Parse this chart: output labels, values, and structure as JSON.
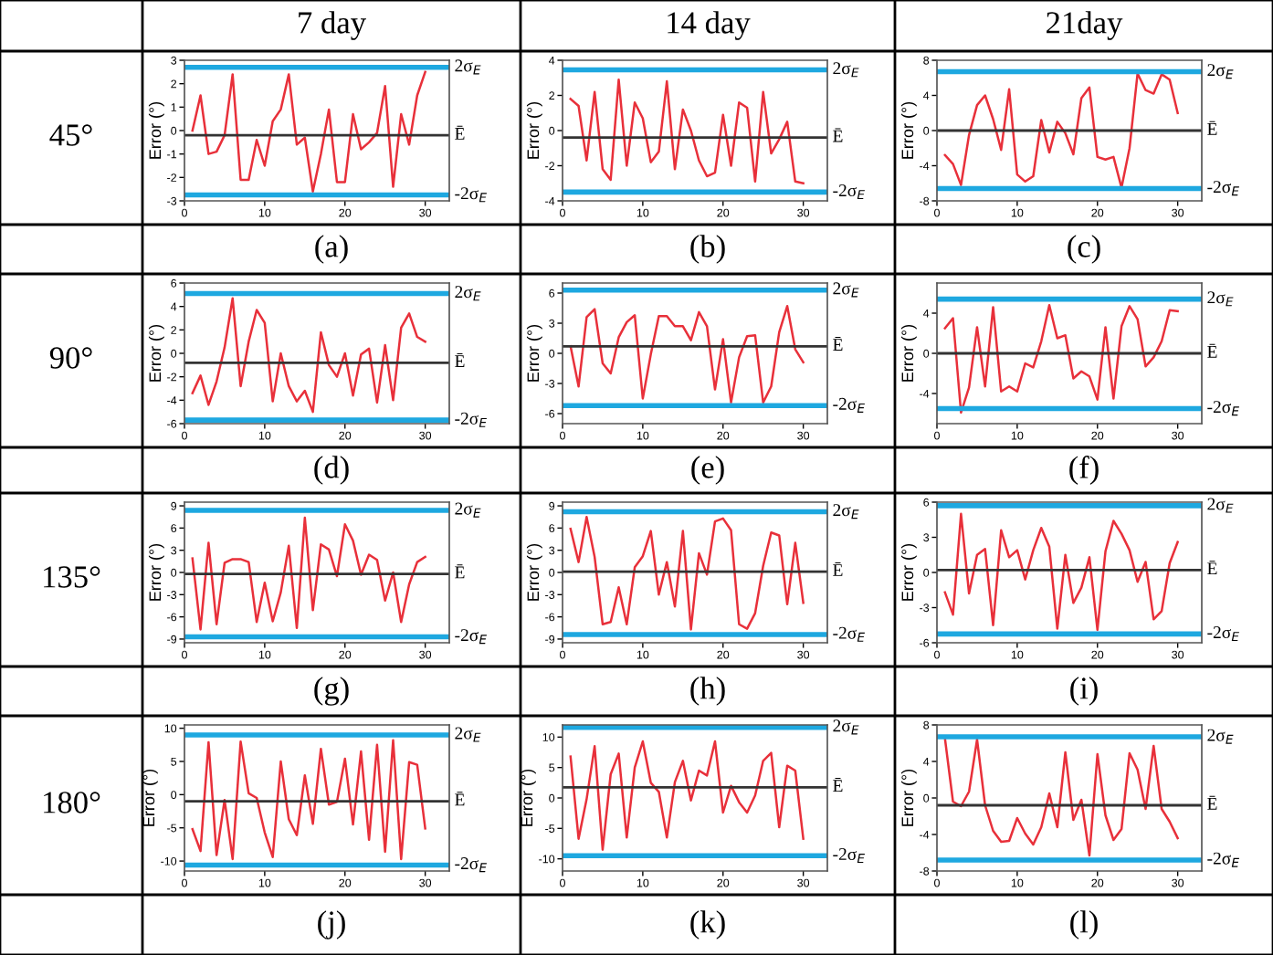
{
  "chart_data": [
    {
      "type": "line",
      "ylabel": "Error (°)",
      "title": "7 day",
      "subtitle": "45°",
      "annotations": [
        "(a)"
      ],
      "x": [
        1,
        2,
        3,
        4,
        5,
        6,
        7,
        8,
        9,
        10,
        11,
        12,
        13,
        14,
        15,
        16,
        17,
        18,
        19,
        20,
        21,
        22,
        23,
        24,
        25,
        26,
        27,
        28,
        29,
        30
      ],
      "xlim": [
        0,
        33
      ],
      "xticks": [
        0,
        10,
        20,
        30
      ],
      "ylim": [
        -3,
        3
      ],
      "yticks": [
        -3,
        -2,
        -1,
        0,
        1,
        2,
        3
      ],
      "series": [
        {
          "color": "#e8303a",
          "values": [
            0,
            1.5,
            -1.0,
            -0.9,
            -0.2,
            2.4,
            -2.1,
            -2.1,
            -0.4,
            -1.5,
            0.4,
            0.9,
            2.4,
            -0.6,
            -0.3,
            -2.6,
            -1.0,
            0.9,
            -2.2,
            -2.2,
            0.7,
            -0.8,
            -0.5,
            -0.1,
            1.9,
            -2.4,
            0.7,
            -0.6,
            1.5,
            2.5
          ]
        }
      ],
      "ref_lines": [
        {
          "axis": "y",
          "value": 2.7,
          "label": "2σ$_{E}$",
          "color": "#1ea8e0"
        },
        {
          "axis": "y",
          "value": -0.2,
          "label": "Ē",
          "color": "#333333"
        },
        {
          "axis": "y",
          "value": -2.75,
          "label": "-2σ$_{E}$",
          "color": "#1ea8e0"
        }
      ]
    },
    {
      "type": "line",
      "ylabel": "Error (°)",
      "title": "14 day",
      "annotations": [
        "(b)"
      ],
      "x": [
        1,
        2,
        3,
        4,
        5,
        6,
        7,
        8,
        9,
        10,
        11,
        12,
        13,
        14,
        15,
        16,
        17,
        18,
        19,
        20,
        21,
        22,
        23,
        24,
        25,
        26,
        27,
        28,
        29,
        30
      ],
      "xlim": [
        0,
        33
      ],
      "xticks": [
        0,
        10,
        20,
        30
      ],
      "ylim": [
        -4,
        4
      ],
      "yticks": [
        -4,
        -2,
        0,
        2,
        4
      ],
      "series": [
        {
          "color": "#e8303a",
          "values": [
            1.8,
            1.4,
            -1.7,
            2.2,
            -2.2,
            -2.8,
            2.9,
            -2.0,
            1.6,
            0.7,
            -1.8,
            -1.2,
            2.8,
            -2.2,
            1.2,
            0.0,
            -1.7,
            -2.6,
            -2.4,
            0.9,
            -2.0,
            1.6,
            1.3,
            -2.9,
            2.2,
            -1.3,
            -0.5,
            0.5,
            -2.9,
            -3.0
          ]
        }
      ],
      "ref_lines": [
        {
          "axis": "y",
          "value": 3.45,
          "label": "2σ$_{E}$",
          "color": "#1ea8e0"
        },
        {
          "axis": "y",
          "value": -0.4,
          "label": "Ē",
          "color": "#333333"
        },
        {
          "axis": "y",
          "value": -3.5,
          "label": "-2σ$_{E}$",
          "color": "#1ea8e0"
        }
      ]
    },
    {
      "type": "line",
      "ylabel": "Error (°)",
      "title": "21day",
      "annotations": [
        "(c)"
      ],
      "x": [
        1,
        2,
        3,
        4,
        5,
        6,
        7,
        8,
        9,
        10,
        11,
        12,
        13,
        14,
        15,
        16,
        17,
        18,
        19,
        20,
        21,
        22,
        23,
        24,
        25,
        26,
        27,
        28,
        29,
        30
      ],
      "xlim": [
        0,
        33
      ],
      "xticks": [
        0,
        10,
        20,
        30
      ],
      "ylim": [
        -8,
        8
      ],
      "yticks": [
        -8,
        -4,
        0,
        4,
        8
      ],
      "series": [
        {
          "color": "#e8303a",
          "values": [
            -2.8,
            -3.8,
            -6.2,
            -0.5,
            2.9,
            4.0,
            1.3,
            -2.2,
            4.7,
            -5.0,
            -5.8,
            -5.2,
            1.2,
            -2.5,
            1.0,
            -0.3,
            -2.7,
            3.7,
            4.9,
            -3.0,
            -3.3,
            -3.0,
            -6.5,
            -2.0,
            6.5,
            4.6,
            4.2,
            6.4,
            5.8,
            2.0
          ]
        }
      ],
      "ref_lines": [
        {
          "axis": "y",
          "value": 6.7,
          "label": "2σ$_{E}$",
          "color": "#1ea8e0"
        },
        {
          "axis": "y",
          "value": 0,
          "label": "Ē",
          "color": "#333333"
        },
        {
          "axis": "y",
          "value": -6.6,
          "label": "-2σ$_{E}$",
          "color": "#1ea8e0"
        }
      ]
    },
    {
      "type": "line",
      "ylabel": "Error (°)",
      "subtitle": "90°",
      "annotations": [
        "(d)"
      ],
      "x": [
        1,
        2,
        3,
        4,
        5,
        6,
        7,
        8,
        9,
        10,
        11,
        12,
        13,
        14,
        15,
        16,
        17,
        18,
        19,
        20,
        21,
        22,
        23,
        24,
        25,
        26,
        27,
        28,
        29,
        30
      ],
      "xlim": [
        0,
        33
      ],
      "xticks": [
        0,
        10,
        20,
        30
      ],
      "ylim": [
        -6,
        6
      ],
      "yticks": [
        -6,
        -4,
        -2,
        0,
        2,
        4,
        6
      ],
      "series": [
        {
          "color": "#e8303a",
          "values": [
            -3.4,
            -1.9,
            -4.4,
            -2.4,
            0.5,
            4.7,
            -2.8,
            1.0,
            3.7,
            2.6,
            -4.1,
            0.0,
            -2.8,
            -4.1,
            -3.2,
            -5.0,
            1.8,
            -1.0,
            -2.0,
            0.0,
            -3.6,
            -0.1,
            0.4,
            -4.2,
            0.7,
            -4.0,
            2.2,
            3.4,
            1.4,
            1.0
          ]
        }
      ],
      "ref_lines": [
        {
          "axis": "y",
          "value": 5.1,
          "label": "2σ$_{E}$",
          "color": "#1ea8e0"
        },
        {
          "axis": "y",
          "value": -0.8,
          "label": "Ē",
          "color": "#333333"
        },
        {
          "axis": "y",
          "value": -5.7,
          "label": "-2σ$_{E}$",
          "color": "#1ea8e0"
        }
      ]
    },
    {
      "type": "line",
      "ylabel": "Error (°)",
      "annotations": [
        "(e)"
      ],
      "x": [
        1,
        2,
        3,
        4,
        5,
        6,
        7,
        8,
        9,
        10,
        11,
        12,
        13,
        14,
        15,
        16,
        17,
        18,
        19,
        20,
        21,
        22,
        23,
        24,
        25,
        26,
        27,
        28,
        29,
        30
      ],
      "xlim": [
        0,
        33
      ],
      "xticks": [
        0,
        10,
        20,
        30
      ],
      "ylim": [
        -7,
        7
      ],
      "yticks": [
        -6,
        -3,
        0,
        3,
        6
      ],
      "series": [
        {
          "color": "#e8303a",
          "values": [
            0.7,
            -3.3,
            3.6,
            4.4,
            -1.0,
            -2.0,
            1.6,
            3.1,
            3.8,
            -4.5,
            -0.1,
            3.7,
            3.7,
            2.7,
            2.7,
            1.3,
            4.1,
            2.7,
            -3.6,
            1.4,
            -4.9,
            -0.4,
            1.7,
            1.8,
            -4.9,
            -3.3,
            2.1,
            4.7,
            0.4,
            -0.9
          ]
        }
      ],
      "ref_lines": [
        {
          "axis": "y",
          "value": 6.3,
          "label": "2σ$_{E}$",
          "color": "#1ea8e0"
        },
        {
          "axis": "y",
          "value": 0.7,
          "label": "Ē",
          "color": "#333333"
        },
        {
          "axis": "y",
          "value": -5.2,
          "label": "-2σ$_{E}$",
          "color": "#1ea8e0"
        }
      ]
    },
    {
      "type": "line",
      "ylabel": "Error (°)",
      "annotations": [
        "(f)"
      ],
      "x": [
        1,
        2,
        3,
        4,
        5,
        6,
        7,
        8,
        9,
        10,
        11,
        12,
        13,
        14,
        15,
        16,
        17,
        18,
        19,
        20,
        21,
        22,
        23,
        24,
        25,
        26,
        27,
        28,
        29,
        30
      ],
      "xlim": [
        0,
        33
      ],
      "xticks": [
        0,
        10,
        20,
        30
      ],
      "ylim": [
        -7,
        7
      ],
      "yticks": [
        -4,
        0,
        4
      ],
      "series": [
        {
          "color": "#e8303a",
          "values": [
            2.5,
            3.5,
            -5.9,
            -3.4,
            2.6,
            -3.3,
            4.6,
            -3.8,
            -3.3,
            -3.8,
            -1.0,
            -1.4,
            1.2,
            4.8,
            1.5,
            1.8,
            -2.5,
            -1.8,
            -2.3,
            -4.6,
            2.6,
            -4.5,
            2.7,
            4.7,
            3.4,
            -1.3,
            -0.4,
            1.2,
            4.3,
            4.2
          ]
        }
      ],
      "ref_lines": [
        {
          "axis": "y",
          "value": 5.4,
          "label": "2σ$_{E}$",
          "color": "#1ea8e0"
        },
        {
          "axis": "y",
          "value": 0,
          "label": "Ē",
          "color": "#333333"
        },
        {
          "axis": "y",
          "value": -5.5,
          "label": "-2σ$_{E}$",
          "color": "#1ea8e0"
        }
      ]
    },
    {
      "type": "line",
      "ylabel": "Error (°)",
      "subtitle": "135°",
      "annotations": [
        "(g)"
      ],
      "x": [
        1,
        2,
        3,
        4,
        5,
        6,
        7,
        8,
        9,
        10,
        11,
        12,
        13,
        14,
        15,
        16,
        17,
        18,
        19,
        20,
        21,
        22,
        23,
        24,
        25,
        26,
        27,
        28,
        29,
        30
      ],
      "xlim": [
        0,
        33
      ],
      "xticks": [
        0,
        10,
        20,
        30
      ],
      "ylim": [
        -9.5,
        9.5
      ],
      "yticks": [
        -9,
        -6,
        -3,
        0,
        3,
        6,
        9
      ],
      "series": [
        {
          "color": "#e8303a",
          "values": [
            1.9,
            -7.7,
            4.0,
            -7.0,
            1.3,
            1.8,
            1.8,
            1.4,
            -6.7,
            -1.4,
            -6.6,
            -2.7,
            3.6,
            -7.5,
            7.4,
            -5.1,
            3.8,
            3.1,
            -0.5,
            6.5,
            4.3,
            -0.3,
            2.4,
            1.7,
            -3.8,
            0.0,
            -6.7,
            -1.6,
            1.4,
            2.1
          ]
        }
      ],
      "ref_lines": [
        {
          "axis": "y",
          "value": 8.4,
          "label": "2σ$_{E}$",
          "color": "#1ea8e0"
        },
        {
          "axis": "y",
          "value": -0.2,
          "label": "Ē",
          "color": "#333333"
        },
        {
          "axis": "y",
          "value": -8.7,
          "label": "-2σ$_{E}$",
          "color": "#1ea8e0"
        }
      ]
    },
    {
      "type": "line",
      "ylabel": "Error (°)",
      "annotations": [
        "(h)"
      ],
      "x": [
        1,
        2,
        3,
        4,
        5,
        6,
        7,
        8,
        9,
        10,
        11,
        12,
        13,
        14,
        15,
        16,
        17,
        18,
        19,
        20,
        21,
        22,
        23,
        24,
        25,
        26,
        27,
        28,
        29,
        30
      ],
      "xlim": [
        0,
        33
      ],
      "xticks": [
        0,
        10,
        20,
        30
      ],
      "ylim": [
        -9.5,
        9.5
      ],
      "yticks": [
        -9,
        -6,
        -3,
        0,
        3,
        6,
        9
      ],
      "series": [
        {
          "color": "#e8303a",
          "values": [
            5.9,
            1.4,
            7.5,
            2.1,
            -7.0,
            -6.7,
            -2.0,
            -7.0,
            0.7,
            2.2,
            5.6,
            -3.0,
            1.4,
            -4.6,
            5.6,
            -7.7,
            2.6,
            -0.3,
            6.9,
            7.3,
            5.7,
            -7.0,
            -7.6,
            -5.5,
            0.9,
            5.4,
            5.0,
            -4.3,
            4.0,
            -4.1
          ]
        }
      ],
      "ref_lines": [
        {
          "axis": "y",
          "value": 8.2,
          "label": "2σ$_{E}$",
          "color": "#1ea8e0"
        },
        {
          "axis": "y",
          "value": 0.1,
          "label": "Ē",
          "color": "#333333"
        },
        {
          "axis": "y",
          "value": -8.4,
          "label": "-2σ$_{E}$",
          "color": "#1ea8e0"
        }
      ]
    },
    {
      "type": "line",
      "ylabel": "Error (°)",
      "annotations": [
        "(i)"
      ],
      "x": [
        1,
        2,
        3,
        4,
        5,
        6,
        7,
        8,
        9,
        10,
        11,
        12,
        13,
        14,
        15,
        16,
        17,
        18,
        19,
        20,
        21,
        22,
        23,
        24,
        25,
        26,
        27,
        28,
        29,
        30
      ],
      "xlim": [
        0,
        33
      ],
      "xticks": [
        0,
        10,
        20,
        30
      ],
      "ylim": [
        -6,
        6
      ],
      "yticks": [
        -6,
        -3,
        0,
        3,
        6
      ],
      "series": [
        {
          "color": "#e8303a",
          "values": [
            -1.7,
            -3.6,
            5.0,
            -1.8,
            1.5,
            2.0,
            -4.5,
            3.6,
            1.3,
            1.9,
            -0.6,
            1.9,
            3.8,
            2.2,
            -4.8,
            1.5,
            -2.6,
            -1.3,
            1.3,
            -4.9,
            1.8,
            4.4,
            3.3,
            1.9,
            -0.8,
            0.9,
            -4.0,
            -3.3,
            0.8,
            2.6
          ]
        }
      ],
      "ref_lines": [
        {
          "axis": "y",
          "value": 5.7,
          "label": "2σ$_{E}$",
          "color": "#1ea8e0"
        },
        {
          "axis": "y",
          "value": 0.2,
          "label": "Ē",
          "color": "#333333"
        },
        {
          "axis": "y",
          "value": -5.25,
          "label": "-2σ$_{E}$",
          "color": "#1ea8e0"
        }
      ]
    },
    {
      "type": "line",
      "ylabel": "Error (°)",
      "subtitle": "180°",
      "annotations": [
        "(j)"
      ],
      "x": [
        1,
        2,
        3,
        4,
        5,
        6,
        7,
        8,
        9,
        10,
        11,
        12,
        13,
        14,
        15,
        16,
        17,
        18,
        19,
        20,
        21,
        22,
        23,
        24,
        25,
        26,
        27,
        28,
        29,
        30
      ],
      "xlim": [
        0,
        33
      ],
      "xticks": [
        0,
        10,
        20,
        30
      ],
      "ylim": [
        -11.5,
        10.5
      ],
      "yticks": [
        -10,
        -5,
        0,
        5,
        10
      ],
      "series": [
        {
          "color": "#e8303a",
          "values": [
            -5.2,
            -8.5,
            7.9,
            -9.1,
            -0.8,
            -9.7,
            8.0,
            0.2,
            -0.5,
            -5.7,
            -9.4,
            5.0,
            -3.7,
            -6.1,
            2.9,
            -4.4,
            6.9,
            -1.5,
            -1.1,
            5.4,
            -4.5,
            6.5,
            -6.8,
            7.5,
            -8.6,
            8.2,
            -9.7,
            4.9,
            4.5,
            -5.1
          ]
        }
      ],
      "ref_lines": [
        {
          "axis": "y",
          "value": 9.0,
          "label": "2σ$_{E}$",
          "color": "#1ea8e0"
        },
        {
          "axis": "y",
          "value": -1.0,
          "label": "Ē",
          "color": "#333333"
        },
        {
          "axis": "y",
          "value": -10.6,
          "label": "-2σ$_{E}$",
          "color": "#1ea8e0"
        }
      ]
    },
    {
      "type": "line",
      "ylabel": "Error (°)",
      "annotations": [
        "(k)"
      ],
      "x": [
        1,
        2,
        3,
        4,
        5,
        6,
        7,
        8,
        9,
        10,
        11,
        12,
        13,
        14,
        15,
        16,
        17,
        18,
        19,
        20,
        21,
        22,
        23,
        24,
        25,
        26,
        27,
        28,
        29,
        30
      ],
      "xlim": [
        0,
        33
      ],
      "xticks": [
        0,
        10,
        20,
        30
      ],
      "ylim": [
        -12,
        12
      ],
      "yticks": [
        -10,
        -5,
        0,
        5,
        10
      ],
      "series": [
        {
          "color": "#e8303a",
          "values": [
            6.8,
            -6.7,
            -0.2,
            8.5,
            -8.5,
            3.9,
            7.3,
            -6.5,
            5.0,
            9.3,
            2.5,
            1.0,
            -6.5,
            2.6,
            6.1,
            -0.4,
            4.5,
            3.7,
            9.3,
            -2.4,
            2.0,
            -0.7,
            -2.4,
            0.4,
            6.1,
            7.4,
            -4.8,
            5.3,
            4.5,
            -6.7
          ]
        }
      ],
      "ref_lines": [
        {
          "axis": "y",
          "value": 11.6,
          "label": "2σ$_{E}$",
          "color": "#1ea8e0"
        },
        {
          "axis": "y",
          "value": 1.75,
          "label": "Ē",
          "color": "#333333"
        },
        {
          "axis": "y",
          "value": -9.5,
          "label": "-2σ$_{E}$",
          "color": "#1ea8e0"
        }
      ]
    },
    {
      "type": "line",
      "ylabel": "Error (°)",
      "annotations": [
        "(l)"
      ],
      "x": [
        1,
        2,
        3,
        4,
        5,
        6,
        7,
        8,
        9,
        10,
        11,
        12,
        13,
        14,
        15,
        16,
        17,
        18,
        19,
        20,
        21,
        22,
        23,
        24,
        25,
        26,
        27,
        28,
        29,
        30
      ],
      "xlim": [
        0,
        33
      ],
      "xticks": [
        0,
        10,
        20,
        30
      ],
      "ylim": [
        -8,
        8
      ],
      "yticks": [
        -8,
        -4,
        0,
        4,
        8
      ],
      "series": [
        {
          "color": "#e8303a",
          "values": [
            6.5,
            -0.4,
            -0.9,
            0.7,
            6.4,
            -0.8,
            -3.6,
            -4.8,
            -4.7,
            -2.2,
            -3.9,
            -5.1,
            -3.2,
            0.5,
            -3.2,
            5.0,
            -2.4,
            -0.2,
            -6.3,
            4.8,
            -1.9,
            -4.6,
            -3.4,
            4.9,
            3.1,
            -1.2,
            5.7,
            -1.2,
            -2.6,
            -4.4
          ]
        }
      ],
      "ref_lines": [
        {
          "axis": "y",
          "value": 6.7,
          "label": "2σ$_{E}$",
          "color": "#1ea8e0"
        },
        {
          "axis": "y",
          "value": -0.8,
          "label": "Ē",
          "color": "#333333"
        },
        {
          "axis": "y",
          "value": -6.8,
          "label": "-2σ$_{E}$",
          "color": "#1ea8e0"
        }
      ]
    }
  ]
}
